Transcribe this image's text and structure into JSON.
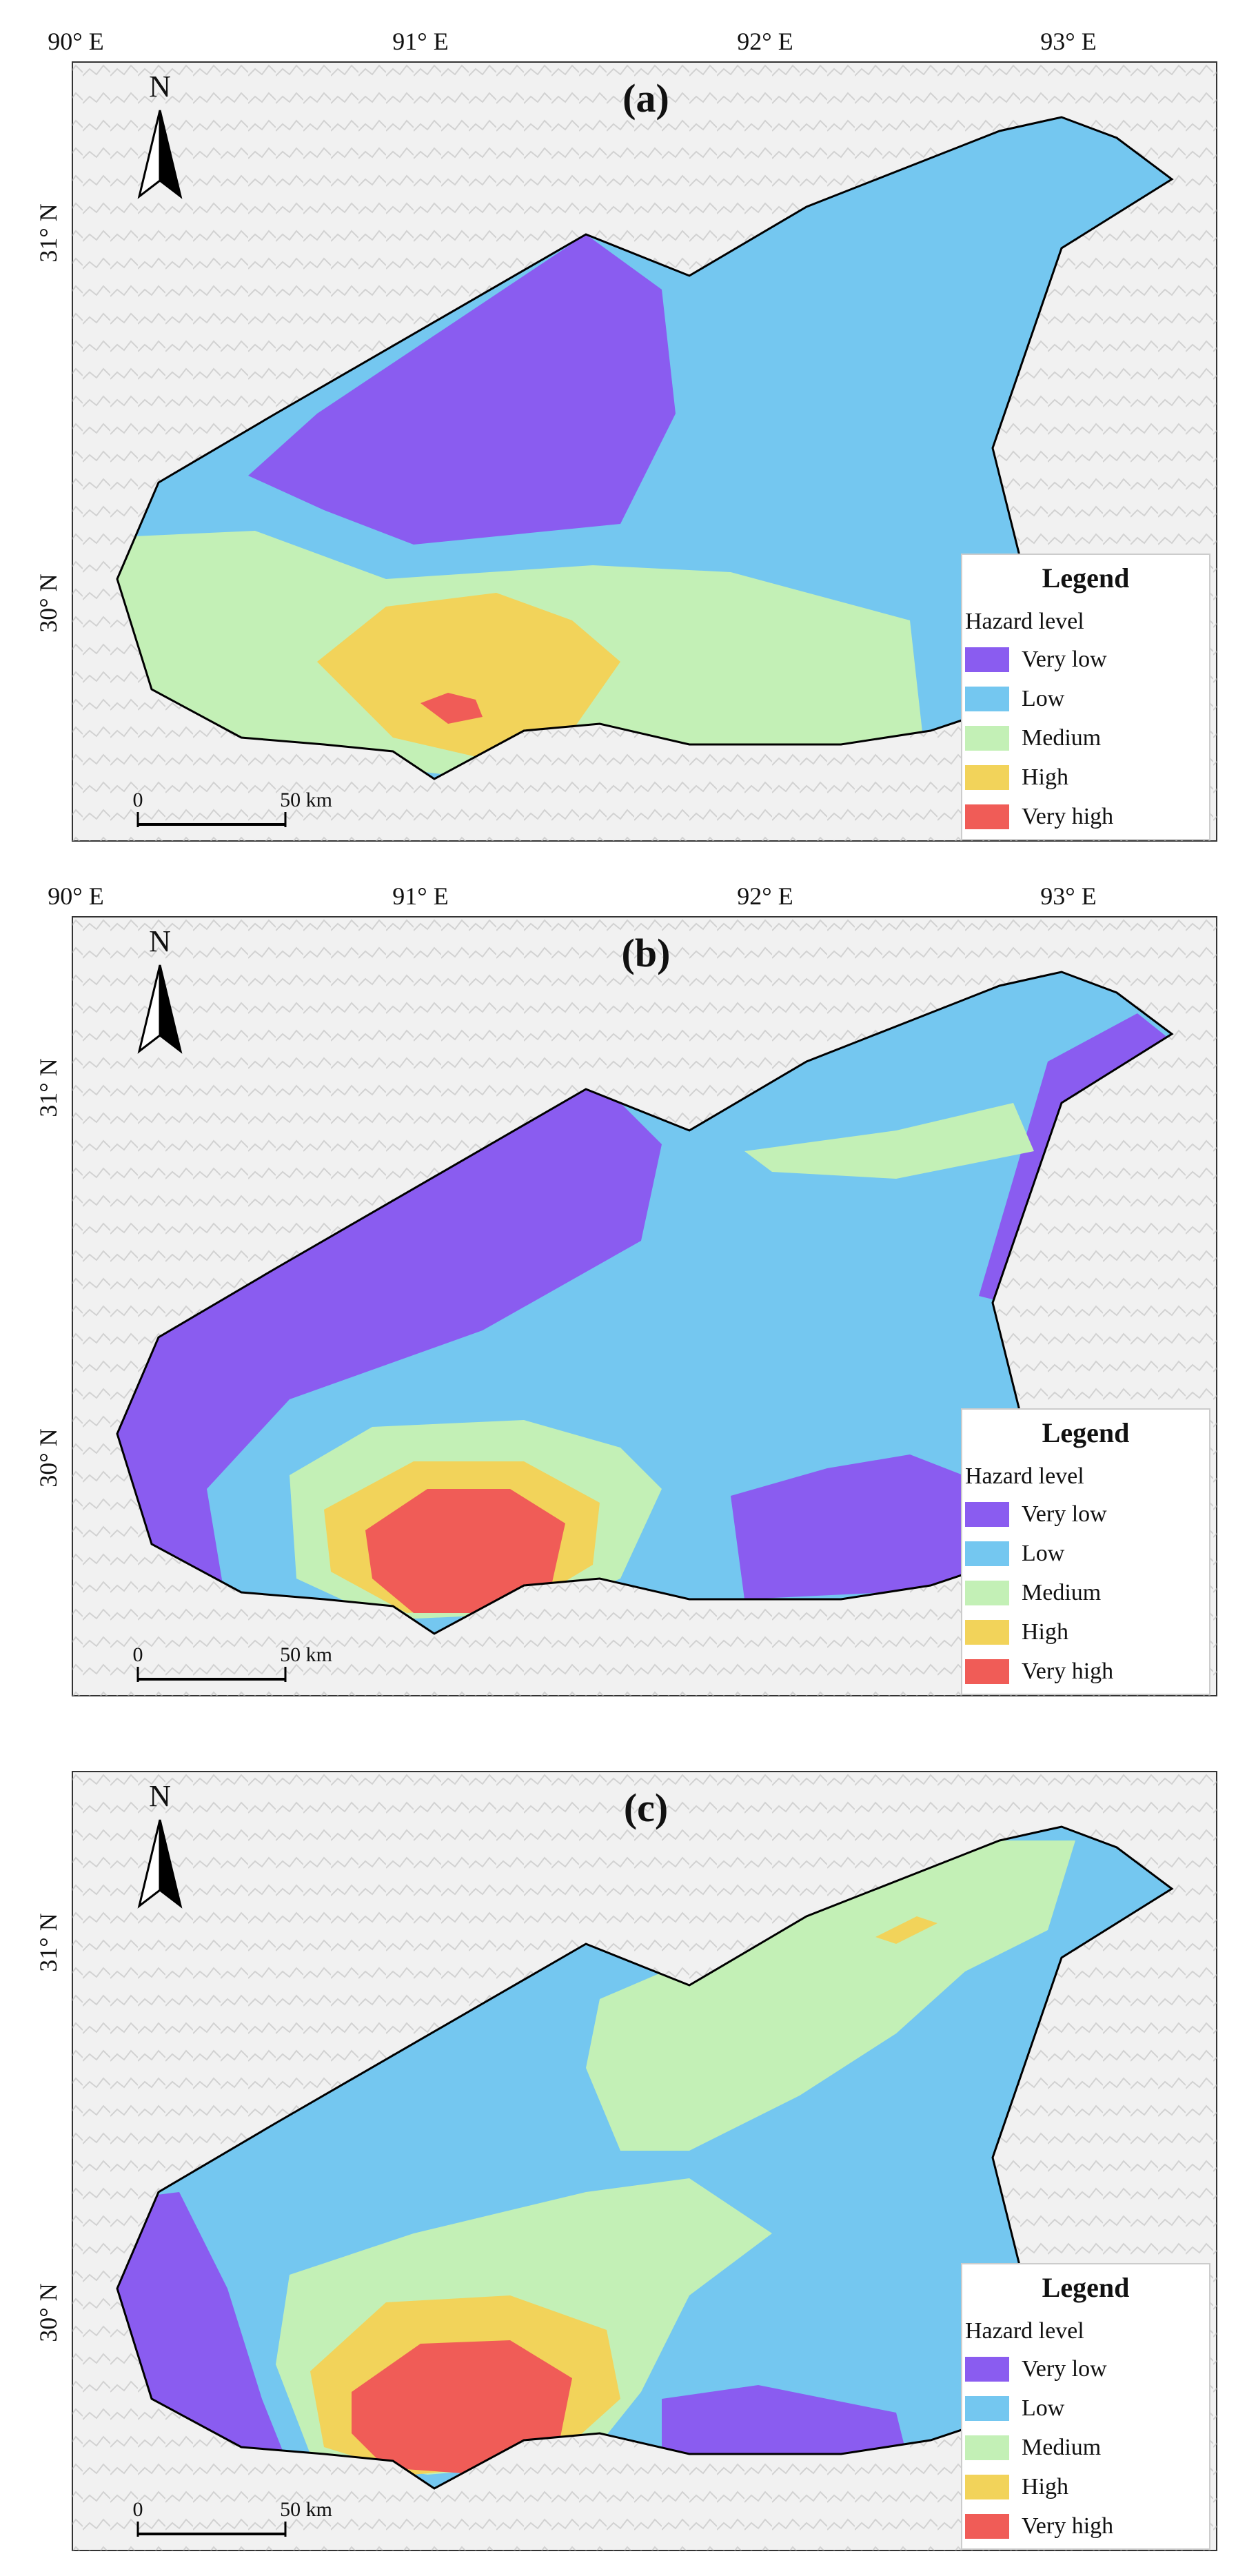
{
  "colors": {
    "very_low": "#8a5cf0",
    "low": "#74c7f0",
    "medium": "#c3f0b6",
    "high": "#f2d35a",
    "very_high": "#f05c57",
    "boundary": "#000000"
  },
  "axes": {
    "lon_labels": [
      "90° E",
      "91° E",
      "92° E",
      "93° E"
    ],
    "lat_labels": [
      "31° N",
      "30° N"
    ]
  },
  "north": "N",
  "scale": {
    "zero": "0",
    "distance": "50 km"
  },
  "legend": {
    "title": "Legend",
    "subtitle": "Hazard level",
    "items": [
      {
        "label": "Very low",
        "color_key": "very_low"
      },
      {
        "label": "Low",
        "color_key": "low"
      },
      {
        "label": "Medium",
        "color_key": "medium"
      },
      {
        "label": "High",
        "color_key": "high"
      },
      {
        "label": "Very high",
        "color_key": "very_high"
      }
    ]
  },
  "panels": [
    {
      "label": "(a)",
      "base_class": "low",
      "very_low_region": "northwest",
      "medium_extent": "small",
      "very_high_extent": "small"
    },
    {
      "label": "(b)",
      "base_class": "low",
      "very_low_region": "west-and-edges",
      "medium_extent": "moderate",
      "very_high_extent": "large"
    },
    {
      "label": "(c)",
      "base_class": "low",
      "very_low_region": "southwest-edge",
      "medium_extent": "large",
      "very_high_extent": "large"
    }
  ]
}
